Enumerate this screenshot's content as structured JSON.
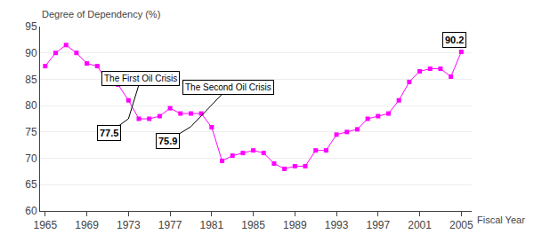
{
  "chart_data": {
    "type": "line",
    "x": [
      1965,
      1966,
      1967,
      1968,
      1969,
      1970,
      1971,
      1972,
      1973,
      1974,
      1975,
      1976,
      1977,
      1978,
      1979,
      1980,
      1981,
      1982,
      1983,
      1984,
      1985,
      1986,
      1987,
      1988,
      1989,
      1990,
      1991,
      1992,
      1993,
      1994,
      1995,
      1996,
      1997,
      1998,
      1999,
      2000,
      2001,
      2002,
      2003,
      2004,
      2005
    ],
    "values": [
      87.5,
      90.0,
      91.5,
      90.0,
      88.0,
      87.5,
      84.5,
      84.0,
      81.0,
      77.5,
      77.5,
      78.0,
      79.5,
      78.5,
      78.5,
      78.5,
      75.9,
      69.5,
      70.5,
      71.0,
      71.5,
      71.0,
      69.0,
      68.0,
      68.5,
      68.5,
      71.5,
      71.5,
      74.5,
      75.0,
      75.5,
      77.5,
      78.0,
      78.5,
      81.0,
      84.5,
      86.5,
      87.0,
      87.0,
      85.5,
      90.2
    ],
    "color": "#FF00FF",
    "marker": "square",
    "xlabel": "Fiscal Year",
    "ylabel": "Degree of Dependency (%)",
    "xlim": [
      1964.5,
      2006.0
    ],
    "xticks": [
      1965,
      1969,
      1973,
      1977,
      1981,
      1985,
      1989,
      1993,
      1997,
      2001,
      2005
    ],
    "ylim": [
      60,
      95
    ],
    "yticks": [
      60,
      65,
      70,
      75,
      80,
      85,
      90,
      95
    ],
    "grid": true,
    "annotations": [
      {
        "text": "77.5",
        "x": 1973,
        "y": 77.5
      },
      {
        "text": "75.9",
        "x": 1979,
        "y": 76.0
      },
      {
        "text": "90.2",
        "x": 2005,
        "y": 90.2
      },
      {
        "text": "The First Oil Crisis",
        "x": 1973,
        "y": 77.5
      },
      {
        "text": "The Second Oil Crisis",
        "x": 1979,
        "y": 76.0
      }
    ]
  }
}
